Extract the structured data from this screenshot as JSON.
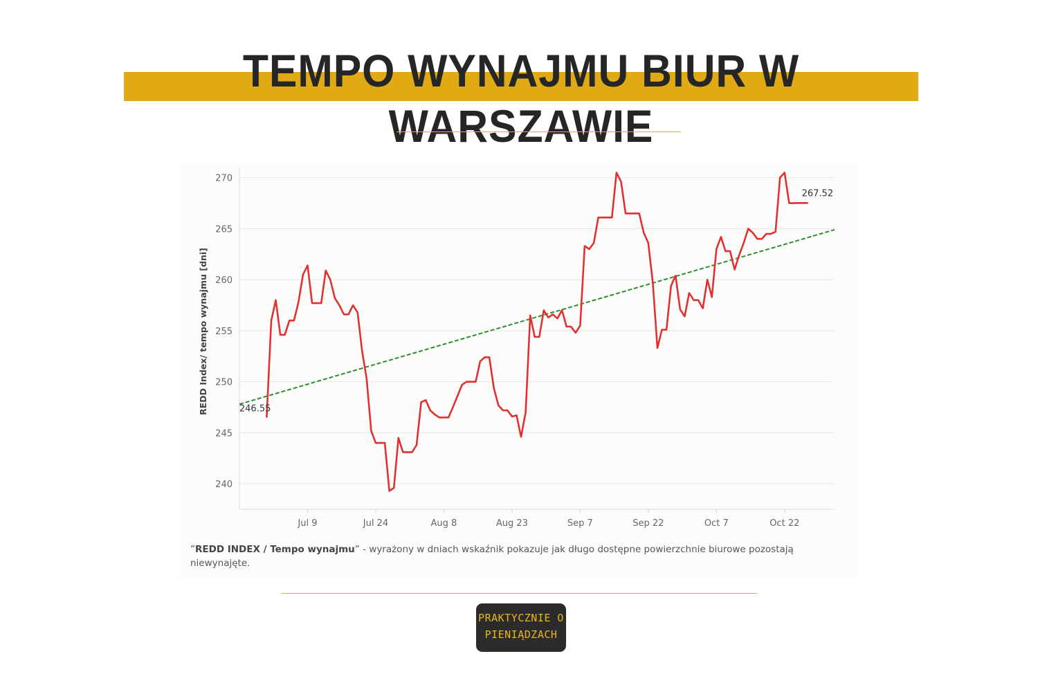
{
  "header": {
    "title": "TEMPO WYNAJMU BIUR W WARSZAWIE"
  },
  "colors": {
    "accent": "#e0aa14",
    "series": "#e03030",
    "trend": "#2e8b2e",
    "logo_bg": "#2b2b2b",
    "logo_text": "#e8b81c"
  },
  "footnote": {
    "quote_open": "”",
    "bold": "REDD INDEX / Tempo wynajmu",
    "rest": "” - wyrażony w dniach wskaźnik pokazuje jak długo dostępne powierzchnie biurowe pozostają niewynajęte."
  },
  "logo": {
    "line1": "PRAKTYCZNIE O",
    "line2": "PIENIĄDZACH"
  },
  "chart_data": {
    "type": "line",
    "title": "",
    "xlabel": "",
    "ylabel": "REDD Index/ tempo wynajmu [dni]",
    "ylim": [
      237.5,
      271
    ],
    "yticks": [
      240,
      245,
      250,
      255,
      260,
      265,
      270
    ],
    "x_tick_labels": [
      "Jul 9",
      "Jul 24",
      "Aug 8",
      "Aug 23",
      "Sep 7",
      "Sep 22",
      "Oct 7",
      "Oct 22"
    ],
    "x_tick_days": [
      9,
      24,
      39,
      54,
      69,
      84,
      99,
      114
    ],
    "x_day_reference": "Jul 0",
    "xlim_days": [
      -6,
      125
    ],
    "grid": true,
    "series": [
      {
        "name": "",
        "days": [
          0,
          1,
          2,
          3,
          4,
          5,
          6,
          7,
          8,
          9,
          10,
          11,
          12,
          13,
          14,
          15,
          16,
          17,
          18,
          19,
          20,
          21,
          22,
          23,
          24,
          25,
          26,
          27,
          28,
          29,
          30,
          31,
          32,
          33,
          34,
          35,
          36,
          37,
          38,
          39,
          40,
          41,
          42,
          43,
          44,
          45,
          46,
          47,
          48,
          49,
          50,
          51,
          52,
          53,
          54,
          55,
          56,
          57,
          58,
          59,
          60,
          61,
          62,
          63,
          64,
          65,
          66,
          67,
          68,
          69,
          70,
          71,
          72,
          73,
          74,
          75,
          76,
          77,
          78,
          79,
          80,
          81,
          82,
          83,
          84,
          85,
          86,
          87,
          88,
          89,
          90,
          91,
          92,
          93,
          94,
          95,
          96,
          97,
          98,
          99,
          100,
          101,
          102,
          103,
          104,
          105,
          106,
          107,
          108,
          109,
          110,
          111,
          112,
          113,
          114,
          115,
          116,
          117,
          118,
          119
        ],
        "values": [
          246.55,
          256,
          258,
          254.6,
          254.6,
          256,
          256,
          257.8,
          260.5,
          261.4,
          257.7,
          257.7,
          257.7,
          260.9,
          260,
          258.2,
          257.5,
          256.6,
          256.6,
          257.5,
          256.8,
          253,
          250.3,
          245.2,
          244,
          244,
          244,
          239.3,
          239.6,
          244.5,
          243.1,
          243.1,
          243.1,
          243.8,
          248,
          248.2,
          247.2,
          246.8,
          246.5,
          246.5,
          246.5,
          247.5,
          248.6,
          249.7,
          250,
          250,
          250,
          252,
          252.4,
          252.4,
          249.4,
          247.7,
          247.2,
          247.2,
          246.6,
          246.7,
          244.6,
          247,
          256.5,
          254.4,
          254.4,
          257,
          256.3,
          256.6,
          256.2,
          257,
          255.4,
          255.4,
          254.8,
          255.5,
          263.3,
          263,
          263.6,
          266.1,
          266.1,
          266.1,
          266.1,
          270.5,
          269.6,
          266.5,
          266.5,
          266.5,
          266.5,
          264.6,
          263.6,
          259.7,
          253.3,
          255.1,
          255.1,
          259.4,
          260.4,
          257.1,
          256.4,
          258.7,
          258,
          258,
          257.2,
          260,
          258.3,
          263,
          264.2,
          262.8,
          262.8,
          261,
          262.4,
          263.6,
          265,
          264.6,
          264,
          264,
          264.5,
          264.5,
          264.7,
          270,
          270.5,
          267.5,
          267.5,
          267.52,
          267.52,
          267.52
        ]
      },
      {
        "name": "",
        "type": "trend",
        "days": [
          -6,
          125
        ],
        "values": [
          247.8,
          264.9
        ]
      }
    ],
    "annotations": [
      {
        "text": "246.55",
        "day": 0,
        "value": 246.55
      },
      {
        "text": "267.52",
        "day": 119,
        "value": 267.52
      }
    ]
  }
}
